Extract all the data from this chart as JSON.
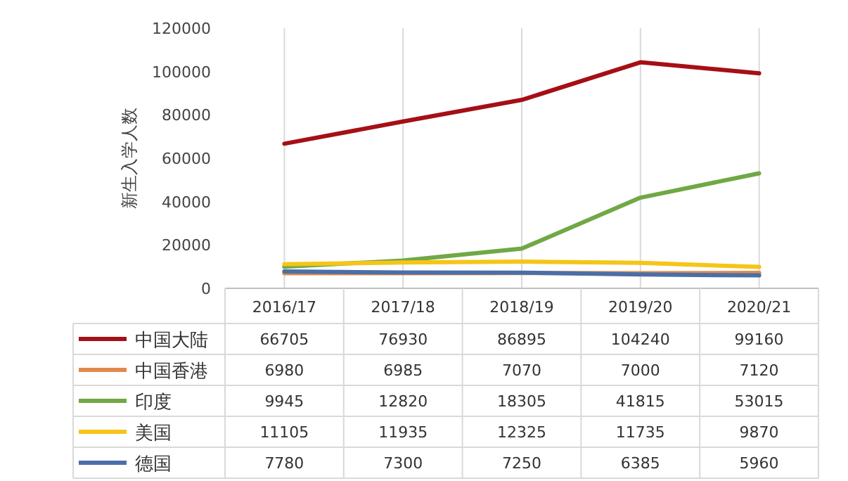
{
  "chart_data": {
    "type": "line",
    "ylabel": "新生入学人数",
    "categories": [
      "2016/17",
      "2017/18",
      "2018/19",
      "2019/20",
      "2020/21"
    ],
    "series": [
      {
        "name": "中国大陆",
        "color": "#a50f15",
        "values": [
          66705,
          76930,
          86895,
          104240,
          99160
        ]
      },
      {
        "name": "中国香港",
        "color": "#e08a4c",
        "values": [
          6980,
          6985,
          7070,
          7000,
          7120
        ]
      },
      {
        "name": "印度",
        "color": "#70a846",
        "values": [
          9945,
          12820,
          18305,
          41815,
          53015
        ]
      },
      {
        "name": "美国",
        "color": "#f5c518",
        "values": [
          11105,
          11935,
          12325,
          11735,
          9870
        ]
      },
      {
        "name": "德国",
        "color": "#4a6fa8",
        "values": [
          7780,
          7300,
          7250,
          6385,
          5960
        ]
      }
    ],
    "ylim": [
      0,
      120000
    ],
    "yticks": [
      0,
      20000,
      40000,
      60000,
      80000,
      100000,
      120000
    ],
    "grid": "x",
    "legend": "bottom",
    "data_labels": true,
    "marker": "none",
    "line_style": "solid"
  }
}
